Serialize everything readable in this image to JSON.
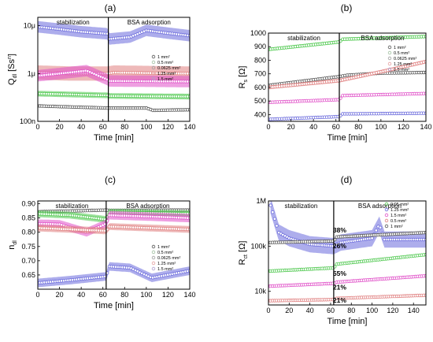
{
  "panel_letters": [
    "(a)",
    "(b)",
    "(c)",
    "(d)"
  ],
  "chart_data": [
    {
      "id": "a",
      "type": "scatter",
      "xlabel": "Time [min]",
      "ylabel": "Q",
      "ylabel_sub": "dl",
      "ylabel_tail": " [Ss",
      "ylabel_sup": "n",
      "ylabel_end": "]",
      "xlim": [
        0,
        140
      ],
      "ylog": true,
      "ylim": [
        1e-07,
        1.5e-05
      ],
      "xticks": [
        0,
        20,
        40,
        60,
        80,
        100,
        120,
        140
      ],
      "yticks": [
        {
          "v": 1e-07,
          "label": "100n"
        },
        {
          "v": 1e-06,
          "label": "1μ"
        },
        {
          "v": 1e-05,
          "label": "10μ"
        }
      ],
      "divider_x": 65,
      "region_labels": {
        "left": "stabilization",
        "right": "BSA adsorption"
      },
      "legend": [
        "1 mm²",
        "0.5 mm²",
        "0.0625 mm²",
        "1.25 mm²",
        "1.5 mm²"
      ],
      "legend_colors": [
        "#555555",
        "#9fbf9f",
        "#9f9f9f",
        "#e59f9f",
        "#b0a0d0"
      ],
      "series": [
        {
          "color": "#6a6adc",
          "band": 0.12,
          "points": [
            [
              0,
              9.5e-06
            ],
            [
              20,
              8.5e-06
            ],
            [
              40,
              7.5e-06
            ],
            [
              64,
              6.8e-06
            ],
            [
              66,
              5.3e-06
            ],
            [
              85,
              5.8e-06
            ],
            [
              100,
              8e-06
            ],
            [
              120,
              7e-06
            ],
            [
              140,
              6.2e-06
            ]
          ]
        },
        {
          "color": "#e08080",
          "band": 0.15,
          "points": [
            [
              0,
              1.05e-06
            ],
            [
              30,
              1e-06
            ],
            [
              64,
              1e-06
            ],
            [
              70,
              1.05e-06
            ],
            [
              140,
              1e-06
            ]
          ]
        },
        {
          "color": "#e050c8",
          "band": 0.12,
          "points": [
            [
              0,
              9e-07
            ],
            [
              20,
              1e-06
            ],
            [
              45,
              1.15e-06
            ],
            [
              64,
              7.5e-07
            ],
            [
              66,
              7e-07
            ],
            [
              140,
              6.8e-07
            ]
          ]
        },
        {
          "color": "#4ec84e",
          "band": 0.06,
          "points": [
            [
              0,
              3.8e-07
            ],
            [
              64,
              3.5e-07
            ],
            [
              66,
              3.4e-07
            ],
            [
              140,
              3.3e-07
            ]
          ]
        },
        {
          "color": "#555555",
          "band": 0.03,
          "points": [
            [
              0,
              2.1e-07
            ],
            [
              64,
              1.9e-07
            ],
            [
              100,
              1.9e-07
            ],
            [
              106,
              1.7e-07
            ],
            [
              140,
              1.75e-07
            ]
          ]
        }
      ]
    },
    {
      "id": "b",
      "type": "scatter",
      "xlabel": "Time [min]",
      "ylabel": "R",
      "ylabel_sub": "s",
      "ylabel_tail": " [Ω]",
      "xlim": [
        0,
        140
      ],
      "ylim": [
        350,
        1000
      ],
      "xticks": [
        0,
        20,
        40,
        60,
        80,
        100,
        120,
        140
      ],
      "yticks": [
        {
          "v": 400,
          "label": "400"
        },
        {
          "v": 500,
          "label": "500"
        },
        {
          "v": 600,
          "label": "600"
        },
        {
          "v": 700,
          "label": "700"
        },
        {
          "v": 800,
          "label": "800"
        },
        {
          "v": 900,
          "label": "900"
        },
        {
          "v": 1000,
          "label": "1000"
        }
      ],
      "divider_x": 63,
      "region_labels": {
        "left": "stabilization",
        "right": "BSA adsorption"
      },
      "legend": [
        "1 mm²",
        "0.5 mm²",
        "0.0625 mm²",
        "1.25 mm²",
        "1.5 mm²"
      ],
      "legend_colors": [
        "#555555",
        "#9fbf9f",
        "#9f9f9f",
        "#e59f9f",
        "#b0a0d0"
      ],
      "series": [
        {
          "color": "#4ec84e",
          "band": 12,
          "points": [
            [
              0,
              880
            ],
            [
              63,
              935
            ],
            [
              66,
              955
            ],
            [
              140,
              975
            ]
          ]
        },
        {
          "color": "#555555",
          "band": 10,
          "points": [
            [
              0,
              615
            ],
            [
              63,
              680
            ],
            [
              70,
              690
            ],
            [
              100,
              705
            ],
            [
              140,
              710
            ]
          ]
        },
        {
          "color": "#e08080",
          "band": 14,
          "points": [
            [
              0,
              600
            ],
            [
              63,
              650
            ],
            [
              100,
              715
            ],
            [
              140,
              790
            ]
          ]
        },
        {
          "color": "#e050c8",
          "band": 8,
          "points": [
            [
              0,
              490
            ],
            [
              63,
              510
            ],
            [
              66,
              540
            ],
            [
              140,
              555
            ]
          ]
        },
        {
          "color": "#6a6adc",
          "band": 8,
          "points": [
            [
              0,
              365
            ],
            [
              63,
              385
            ],
            [
              66,
              405
            ],
            [
              140,
              410
            ]
          ]
        }
      ]
    },
    {
      "id": "c",
      "type": "scatter",
      "xlabel": "Time [min]",
      "ylabel": "n",
      "ylabel_sub": "dl",
      "ylabel_tail": "",
      "xlim": [
        0,
        140
      ],
      "ylim": [
        0.6,
        0.91
      ],
      "xticks": [
        0,
        20,
        40,
        60,
        80,
        100,
        120,
        140
      ],
      "yticks": [
        {
          "v": 0.65,
          "label": "0.65"
        },
        {
          "v": 0.7,
          "label": "0.70"
        },
        {
          "v": 0.75,
          "label": "0.75"
        },
        {
          "v": 0.8,
          "label": "0.80"
        },
        {
          "v": 0.85,
          "label": "0.85"
        },
        {
          "v": 0.9,
          "label": "0.90"
        }
      ],
      "divider_x": 63,
      "region_labels": {
        "left": "stabilization",
        "right": "BSA adsorption"
      },
      "legend": [
        "1 mm²",
        "0.5 mm²",
        "0.0625 mm²",
        "1.25 mm²",
        "1.5 mm²"
      ],
      "legend_colors": [
        "#555555",
        "#9fbf9f",
        "#9f9f9f",
        "#e59f9f",
        "#b0a0d0"
      ],
      "series": [
        {
          "color": "#555555",
          "band": 0.004,
          "points": [
            [
              0,
              0.872
            ],
            [
              63,
              0.878
            ],
            [
              66,
              0.877
            ],
            [
              140,
              0.878
            ]
          ]
        },
        {
          "color": "#4ec84e",
          "band": 0.012,
          "points": [
            [
              0,
              0.865
            ],
            [
              30,
              0.86
            ],
            [
              63,
              0.845
            ],
            [
              66,
              0.87
            ],
            [
              140,
              0.865
            ]
          ]
        },
        {
          "color": "#e050c8",
          "band": 0.015,
          "points": [
            [
              0,
              0.83
            ],
            [
              20,
              0.828
            ],
            [
              45,
              0.8
            ],
            [
              63,
              0.83
            ],
            [
              66,
              0.86
            ],
            [
              140,
              0.85
            ]
          ]
        },
        {
          "color": "#e08080",
          "band": 0.012,
          "points": [
            [
              0,
              0.815
            ],
            [
              63,
              0.805
            ],
            [
              66,
              0.82
            ],
            [
              140,
              0.81
            ]
          ]
        },
        {
          "color": "#6a6adc",
          "band": 0.015,
          "points": [
            [
              0,
              0.622
            ],
            [
              30,
              0.632
            ],
            [
              63,
              0.645
            ],
            [
              66,
              0.68
            ],
            [
              85,
              0.675
            ],
            [
              105,
              0.64
            ],
            [
              140,
              0.665
            ]
          ]
        }
      ]
    },
    {
      "id": "d",
      "type": "scatter",
      "xlabel": "Time [min]",
      "ylabel": "R",
      "ylabel_sub": "ct",
      "ylabel_tail": " [Ω]",
      "xlim": [
        0,
        152
      ],
      "ylog": true,
      "ylim": [
        5000,
        1000000
      ],
      "xticks": [
        0,
        20,
        40,
        60,
        80,
        100,
        120,
        140
      ],
      "yticks": [
        {
          "v": 10000,
          "label": "10k"
        },
        {
          "v": 100000,
          "label": "100k"
        },
        {
          "v": 1000000,
          "label": "1M"
        }
      ],
      "divider_x": 63,
      "region_labels": {
        "left": "stabilization",
        "right": "BSA adsorption"
      },
      "legend": [
        "0.05 mm²",
        "1.25 mm²",
        "1.5 mm²",
        "0.5 mm²",
        "1 mm²"
      ],
      "legend_colors": [
        "#4ec84e",
        "#6a6adc",
        "#e050c8",
        "#e08080",
        "#555555"
      ],
      "annotations": [
        {
          "text": "38%",
          "x": 63,
          "y": 200000,
          "color": "#333333"
        },
        {
          "text": "26%",
          "x": 63,
          "y": 90000,
          "color": "#3a3ad0"
        },
        {
          "text": "55%",
          "x": 63,
          "y": 22000,
          "color": "#3cc03c"
        },
        {
          "text": "21%",
          "x": 63,
          "y": 11000,
          "color": "#e040c0"
        },
        {
          "text": "21%",
          "x": 63,
          "y": 5600,
          "color": "#e05050"
        }
      ],
      "series": [
        {
          "color": "#6a6adc",
          "band": 0.18,
          "points": [
            [
              2,
              800000
            ],
            [
              10,
              200000
            ],
            [
              20,
              150000
            ],
            [
              40,
              110000
            ],
            [
              63,
              100000
            ],
            [
              70,
              120000
            ],
            [
              100,
              150000
            ],
            [
              107,
              300000
            ],
            [
              112,
              140000
            ],
            [
              152,
              140000
            ]
          ]
        },
        {
          "color": "#555555",
          "band": 0.02,
          "points": [
            [
              0,
              120000
            ],
            [
              63,
              130000
            ],
            [
              66,
              160000
            ],
            [
              152,
              200000
            ]
          ]
        },
        {
          "color": "#4ec84e",
          "band": 0.02,
          "points": [
            [
              0,
              28000
            ],
            [
              63,
              33000
            ],
            [
              66,
              40000
            ],
            [
              152,
              65000
            ]
          ]
        },
        {
          "color": "#e050c8",
          "band": 0.02,
          "points": [
            [
              0,
              13000
            ],
            [
              63,
              15000
            ],
            [
              66,
              16000
            ],
            [
              152,
              22000
            ]
          ]
        },
        {
          "color": "#e08080",
          "band": 0.02,
          "points": [
            [
              0,
              6200
            ],
            [
              63,
              6600
            ],
            [
              66,
              7000
            ],
            [
              152,
              8200
            ]
          ]
        }
      ]
    }
  ]
}
